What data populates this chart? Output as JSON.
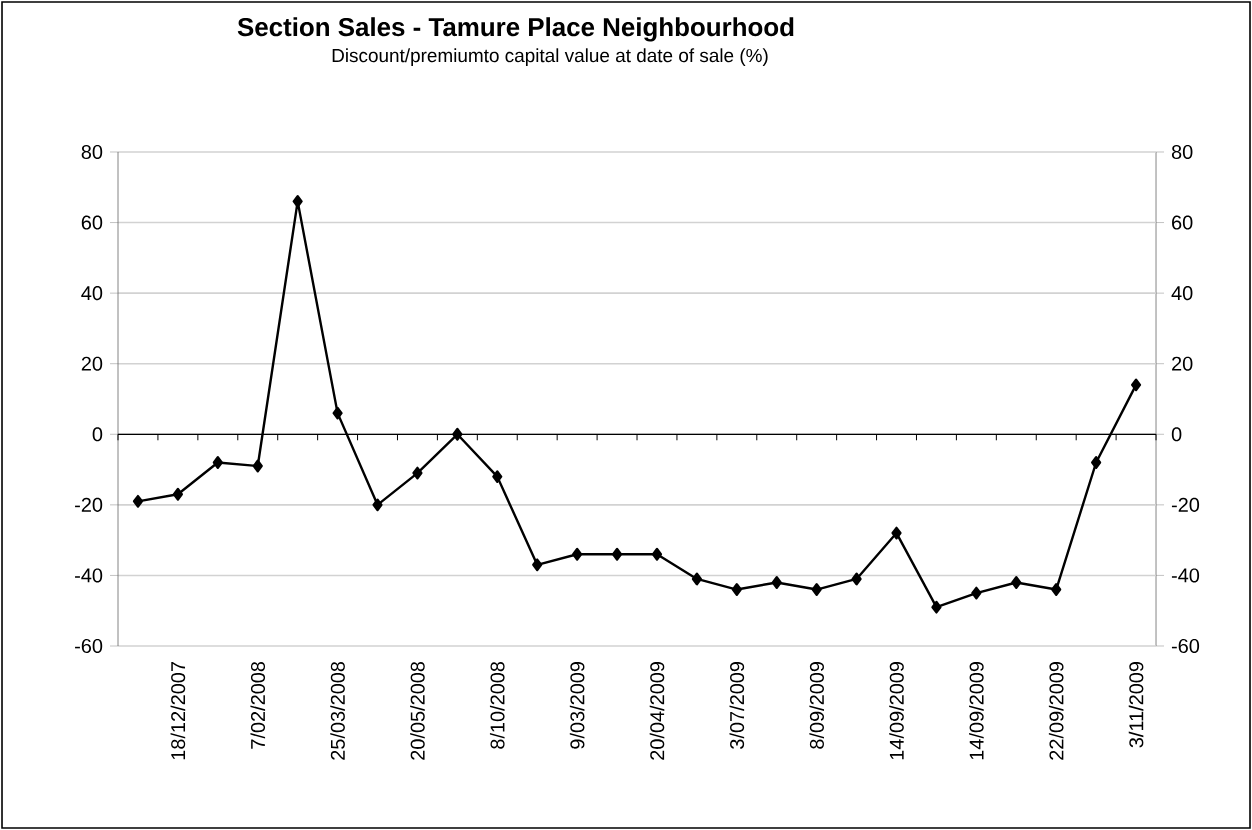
{
  "chart_data": {
    "type": "line",
    "title": "Section Sales - Tamure Place Neighbourhood",
    "subtitle": "Discount/premiumto capital value at date of sale (%)",
    "categories": [
      null,
      "18/12/2007",
      null,
      "7/02/2008",
      null,
      "25/03/2008",
      null,
      "20/05/2008",
      null,
      "8/10/2008",
      null,
      "9/03/2009",
      null,
      "20/04/2009",
      null,
      "3/07/2009",
      null,
      "8/09/2009",
      null,
      "14/09/2009",
      null,
      "14/09/2009",
      null,
      "22/09/2009",
      null,
      "3/11/2009"
    ],
    "series": [
      {
        "color": "#000000",
        "values": [
          -19,
          -17,
          -8,
          -9,
          66,
          6,
          -20,
          -11,
          0,
          -12,
          -37,
          -34,
          -34,
          -34,
          -41,
          -44,
          -42,
          -44,
          -41,
          -28,
          -49,
          -45,
          -42,
          -44,
          -8,
          14
        ]
      }
    ],
    "ylim": [
      -60,
      80
    ],
    "yticks": [
      -60,
      -40,
      -20,
      0,
      20,
      40,
      60,
      80
    ],
    "y2lim": [
      -60,
      80
    ],
    "y2ticks": [
      -60,
      -40,
      -20,
      0,
      20,
      40,
      60,
      80
    ],
    "grid": "y",
    "marker": "diamond",
    "line_style": "solid"
  }
}
